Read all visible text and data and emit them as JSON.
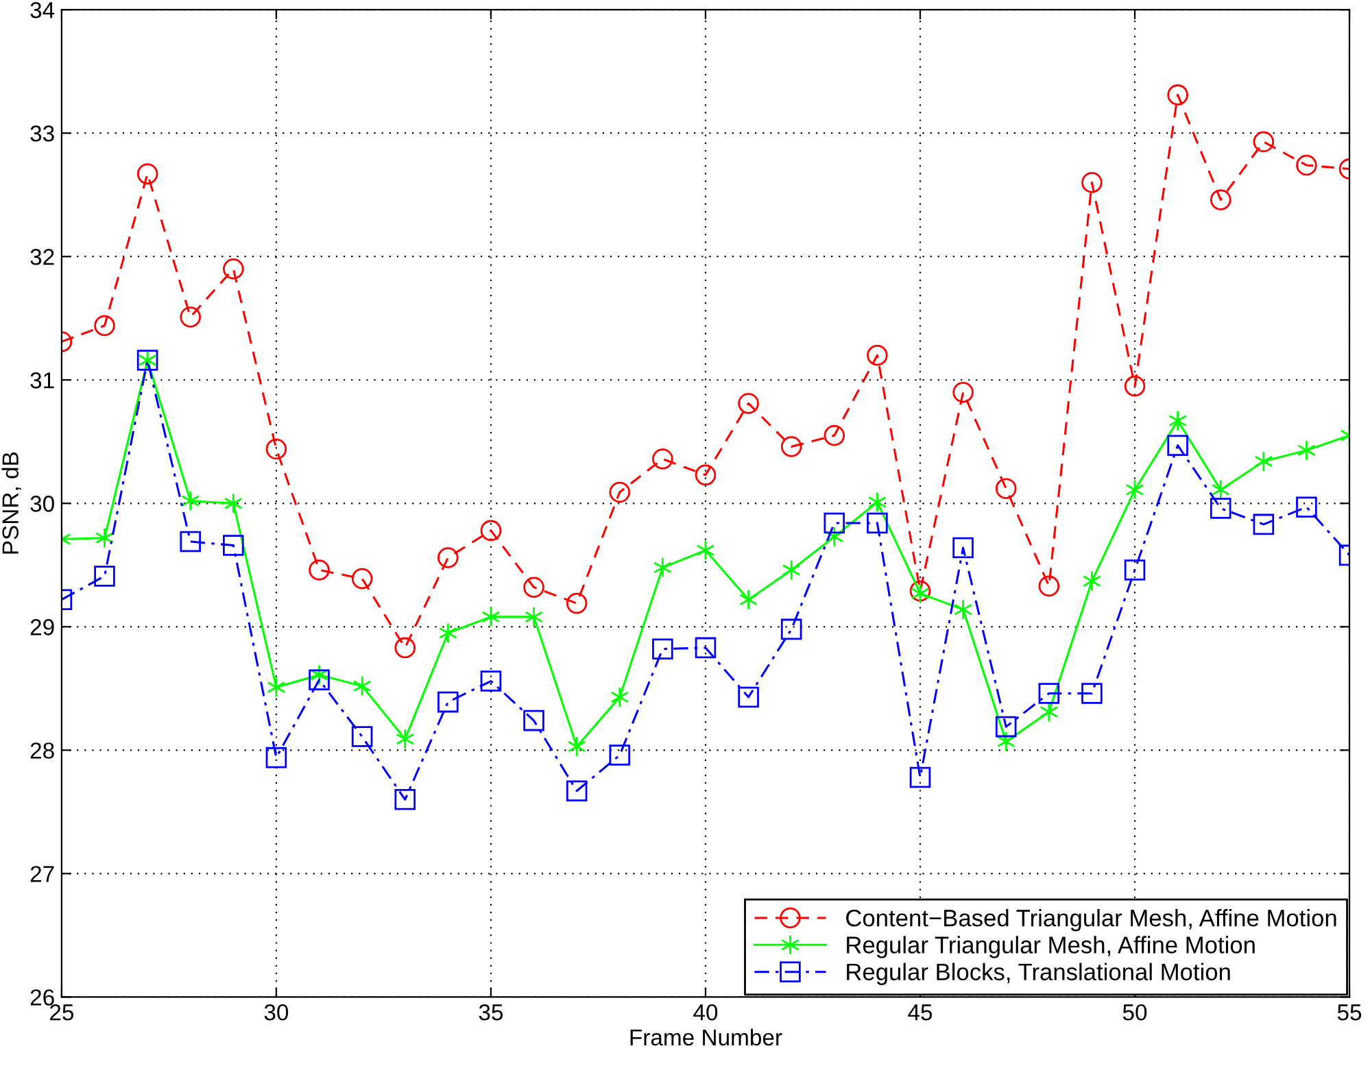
{
  "chart_data": {
    "type": "line",
    "xlabel": "Frame Number",
    "ylabel": "PSNR, dB",
    "x": [
      25,
      26,
      27,
      28,
      29,
      30,
      31,
      32,
      33,
      34,
      35,
      36,
      37,
      38,
      39,
      40,
      41,
      42,
      43,
      44,
      45,
      46,
      47,
      48,
      49,
      50,
      51,
      52,
      53,
      54,
      55
    ],
    "series": [
      {
        "name": "Content−Based Triangular Mesh, Affine Motion",
        "color": "#ff0000",
        "marker": "circle",
        "line_style": "dashed",
        "values": [
          31.31,
          31.44,
          32.67,
          31.51,
          31.9,
          30.44,
          29.46,
          29.39,
          28.83,
          29.56,
          29.78,
          29.32,
          29.19,
          30.09,
          30.36,
          30.23,
          30.81,
          30.46,
          30.55,
          31.2,
          29.29,
          30.9,
          30.12,
          29.33,
          32.6,
          30.95,
          33.31,
          32.46,
          32.93,
          32.74,
          32.71
        ]
      },
      {
        "name": "Regular Triangular Mesh, Affine Motion",
        "color": "#00ff00",
        "marker": "cross",
        "line_style": "solid",
        "values": [
          29.71,
          29.72,
          31.16,
          30.02,
          30.0,
          28.51,
          28.61,
          28.52,
          28.09,
          28.95,
          29.08,
          29.08,
          28.03,
          28.43,
          29.48,
          29.62,
          29.22,
          29.46,
          29.73,
          30.01,
          29.27,
          29.14,
          28.07,
          28.31,
          29.37,
          30.11,
          30.67,
          30.11,
          30.34,
          30.43,
          30.55
        ]
      },
      {
        "name": "Regular Blocks, Translational Motion",
        "color": "#0000ff",
        "marker": "square",
        "line_style": "dashdot",
        "values": [
          29.22,
          29.41,
          31.16,
          29.69,
          29.66,
          27.94,
          28.57,
          28.11,
          27.6,
          28.39,
          28.56,
          28.24,
          27.67,
          27.96,
          28.82,
          28.83,
          28.43,
          28.98,
          29.84,
          29.84,
          27.78,
          29.64,
          28.19,
          28.46,
          28.46,
          29.46,
          30.47,
          29.96,
          29.83,
          29.97,
          29.58
        ]
      }
    ],
    "xlim": [
      25,
      55
    ],
    "ylim": [
      26,
      34
    ],
    "xticks": [
      25,
      30,
      35,
      40,
      45,
      50,
      55
    ],
    "yticks": [
      26,
      27,
      28,
      29,
      30,
      31,
      32,
      33,
      34
    ],
    "grid": true,
    "legend": "bottom right"
  }
}
